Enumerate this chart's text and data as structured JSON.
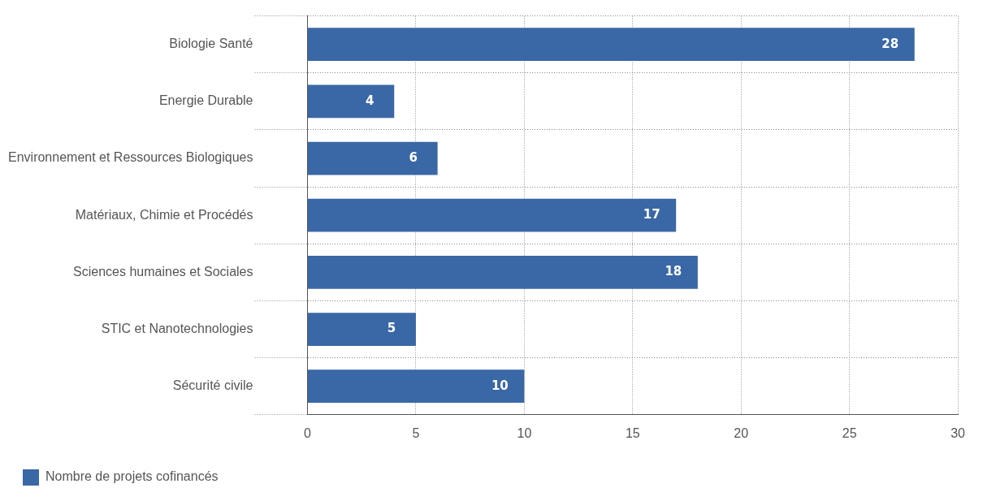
{
  "chart_data": {
    "type": "bar",
    "orientation": "horizontal",
    "categories": [
      "Biologie Santé",
      "Energie Durable",
      "Environnement et Ressources Biologiques",
      "Matériaux, Chimie et Procédés",
      "Sciences humaines et Sociales",
      "STIC et Nanotechnologies",
      "Sécurité civile"
    ],
    "series": [
      {
        "name": "Nombre de projets cofinancés",
        "color": "#3a67a6",
        "values": [
          28,
          4,
          6,
          17,
          18,
          5,
          10
        ]
      }
    ],
    "xlim": [
      0,
      30
    ],
    "xticks": [
      0,
      5,
      10,
      15,
      20,
      25,
      30
    ],
    "grid": true,
    "legend": "bottom left",
    "data_labels": true
  }
}
